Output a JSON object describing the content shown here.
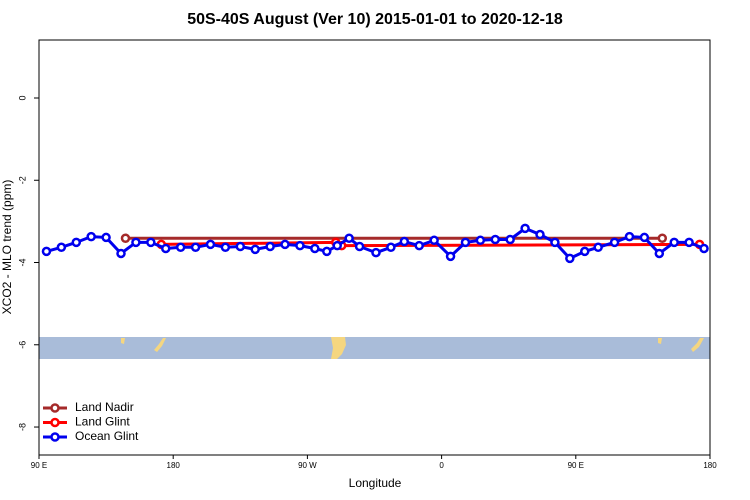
{
  "chart_data": {
    "type": "line",
    "title": "50S-40S August (Ver 10)   2015-01-01 to 2020-12-18",
    "x_label": "Longitude",
    "y_label": "XCO2 - MLO trend (ppm)",
    "xlim": [
      90,
      540
    ],
    "xticks": [
      {
        "value": 90,
        "label": "90 E"
      },
      {
        "value": 180,
        "label": "180"
      },
      {
        "value": 270,
        "label": "90 W"
      },
      {
        "value": 360,
        "label": "0"
      },
      {
        "value": 450,
        "label": "90 E"
      },
      {
        "value": 540,
        "label": "180"
      }
    ],
    "ylim": [
      -8.68,
      1.41
    ],
    "yticks": [
      0,
      -2,
      -4,
      -6,
      -8
    ],
    "legend": "bottom-left",
    "series": [
      {
        "name": "Land Nadir",
        "color": "#a52a2a",
        "x": [
          148,
          508
        ],
        "values": [
          -3.41,
          -3.41
        ]
      },
      {
        "name": "Land Glint",
        "color": "#ff0000",
        "x": [
          172,
          289,
          293,
          533
        ],
        "values": [
          -3.56,
          -3.51,
          -3.59,
          -3.56
        ]
      },
      {
        "name": "Ocean Glint",
        "color": "#0000ee",
        "x": [
          95,
          105,
          115,
          125,
          135,
          145,
          155,
          165,
          175,
          185,
          195,
          205,
          215,
          225,
          235,
          245,
          255,
          265,
          275,
          283,
          290,
          298,
          305,
          316,
          326,
          335,
          345,
          355,
          366,
          376,
          386,
          396,
          406,
          416,
          426,
          436,
          446,
          456,
          465,
          476,
          486,
          496,
          506,
          516,
          526,
          536
        ],
        "values": [
          -3.73,
          -3.63,
          -3.51,
          -3.37,
          -3.39,
          -3.78,
          -3.51,
          -3.51,
          -3.66,
          -3.63,
          -3.63,
          -3.56,
          -3.63,
          -3.61,
          -3.68,
          -3.61,
          -3.56,
          -3.59,
          -3.66,
          -3.73,
          -3.59,
          -3.41,
          -3.61,
          -3.76,
          -3.63,
          -3.49,
          -3.59,
          -3.46,
          -3.85,
          -3.51,
          -3.46,
          -3.44,
          -3.44,
          -3.17,
          -3.32,
          -3.51,
          -3.9,
          -3.73,
          -3.63,
          -3.51,
          -3.37,
          -3.39,
          -3.78,
          -3.51,
          -3.51,
          -3.66
        ]
      }
    ]
  }
}
